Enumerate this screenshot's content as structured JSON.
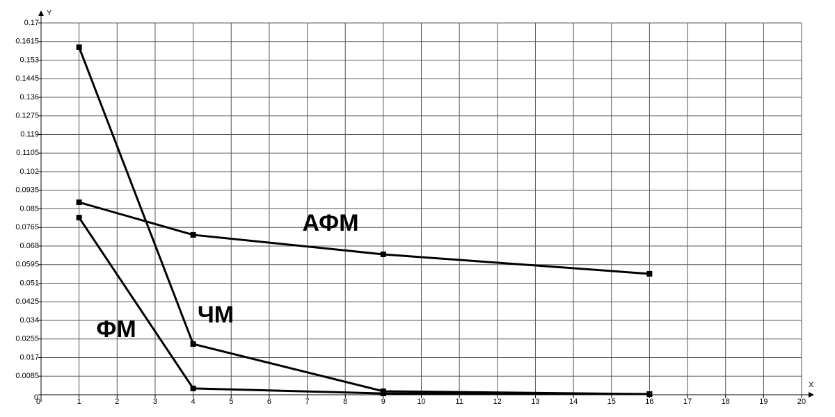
{
  "chart_data": {
    "type": "line",
    "x_label": "X",
    "y_label": "Y",
    "x": [
      1,
      4,
      9,
      16
    ],
    "series": [
      {
        "name": "ЧМ",
        "color": "#000000",
        "values": [
          0.1589,
          0.0232,
          0.0016,
          0.0003
        ]
      },
      {
        "name": "АФМ",
        "color": "#000000",
        "values": [
          0.088,
          0.0731,
          0.0642,
          0.0553
        ]
      },
      {
        "name": "ФМ",
        "color": "#000000",
        "values": [
          0.081,
          0.0029,
          0.0006,
          0.0003
        ]
      }
    ],
    "xlim": [
      0,
      20
    ],
    "xticks": [
      0,
      1,
      2,
      3,
      4,
      5,
      6,
      7,
      8,
      9,
      10,
      11,
      12,
      13,
      14,
      15,
      16,
      17,
      18,
      19,
      20
    ],
    "ylim": [
      0,
      0.17
    ],
    "yticks": [
      0,
      0.0085,
      0.017,
      0.0255,
      0.034,
      0.0425,
      0.051,
      0.0595,
      0.068,
      0.0765,
      0.085,
      0.0935,
      0.102,
      0.1105,
      0.119,
      0.1275,
      0.136,
      0.1445,
      0.153,
      0.1615,
      0.17
    ],
    "grid": true
  }
}
